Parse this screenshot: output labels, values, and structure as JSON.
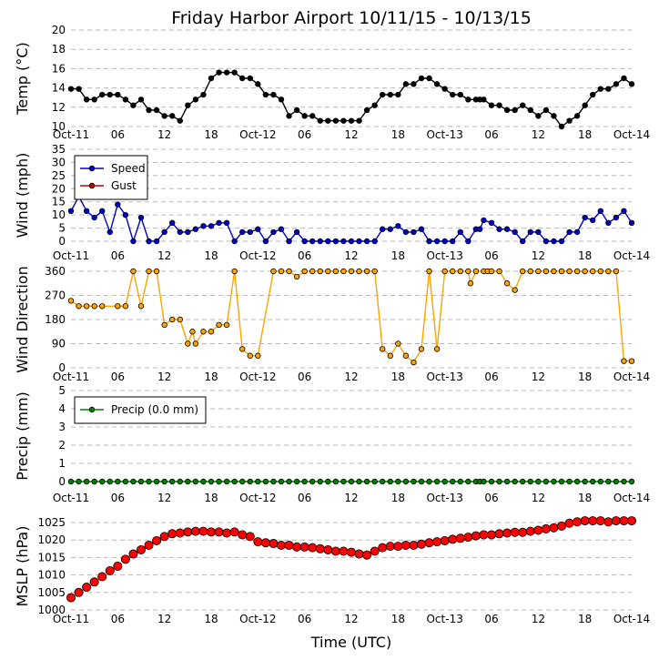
{
  "title": "Friday Harbor Airport 10/11/15 - 10/13/15",
  "xlabel": "Time (UTC)",
  "x_ticks": [
    "Oct-11",
    "06",
    "12",
    "18",
    "Oct-12",
    "06",
    "12",
    "18",
    "Oct-13",
    "06",
    "12",
    "18",
    "Oct-14"
  ],
  "chart_data": [
    {
      "type": "line",
      "ylabel": "Temp (°C)",
      "ylim": [
        10,
        20
      ],
      "y_ticks": [
        "10",
        "12",
        "14",
        "16",
        "18",
        "20"
      ],
      "grid": true,
      "x_unit": "hours since Oct-11 00:00 UTC",
      "series": [
        {
          "name": "",
          "color": "#000000",
          "x": [
            0,
            1,
            2,
            3,
            4,
            5,
            6,
            7,
            8,
            9,
            10,
            11,
            12,
            13,
            14,
            15,
            16,
            17,
            18,
            19,
            20,
            21,
            22,
            23,
            24,
            25,
            26,
            27,
            28,
            29,
            30,
            31,
            32,
            33,
            34,
            35,
            36,
            37,
            38,
            39,
            40,
            41,
            42,
            43,
            44,
            45,
            46,
            47,
            48,
            49,
            50,
            51,
            52,
            52.5,
            53,
            54,
            55,
            56,
            57,
            58,
            59,
            60,
            61,
            62,
            63,
            64,
            65,
            66,
            67,
            68,
            69,
            70,
            71,
            72
          ],
          "y": [
            13.9,
            13.9,
            12.8,
            12.8,
            13.3,
            13.3,
            13.3,
            12.8,
            12.2,
            12.8,
            11.7,
            11.7,
            11.1,
            11.1,
            10.6,
            12.2,
            12.8,
            13.3,
            15,
            15.6,
            15.6,
            15.6,
            15,
            15,
            14.4,
            13.3,
            13.3,
            12.8,
            11.1,
            11.7,
            11.1,
            11.1,
            10.6,
            10.6,
            10.6,
            10.6,
            10.6,
            10.6,
            11.7,
            12.2,
            13.3,
            13.3,
            13.3,
            14.4,
            14.4,
            15,
            15,
            14.4,
            13.9,
            13.3,
            13.3,
            12.8,
            12.8,
            12.8,
            12.8,
            12.2,
            12.2,
            11.7,
            11.7,
            12.2,
            11.7,
            11.1,
            11.7,
            11.1,
            10,
            10.6,
            11.1,
            12.2,
            13.3,
            13.9,
            13.9,
            14.4,
            15,
            14.4
          ]
        }
      ]
    },
    {
      "type": "line",
      "ylabel": "Wind (mph)",
      "ylim": [
        0,
        35
      ],
      "y_ticks": [
        "0",
        "5",
        "10",
        "15",
        "20",
        "25",
        "30",
        "35"
      ],
      "grid": true,
      "legend": "top-left",
      "series": [
        {
          "name": "Speed",
          "color": "#0000cc",
          "x": [
            0,
            1,
            2,
            3,
            4,
            5,
            6,
            7,
            8,
            9,
            10,
            11,
            12,
            13,
            14,
            15,
            16,
            17,
            18,
            19,
            20,
            21,
            22,
            23,
            24,
            25,
            26,
            27,
            28,
            29,
            30,
            31,
            32,
            33,
            34,
            35,
            36,
            37,
            38,
            39,
            40,
            41,
            42,
            43,
            44,
            45,
            46,
            47,
            48,
            49,
            50,
            51,
            52,
            52.5,
            53,
            54,
            55,
            56,
            57,
            58,
            59,
            60,
            61,
            62,
            63,
            64,
            65,
            66,
            67,
            68,
            69,
            70,
            71,
            72
          ],
          "y": [
            11.5,
            17,
            11.5,
            9,
            11.5,
            3.5,
            14,
            10,
            0,
            9,
            0,
            0,
            3.5,
            7,
            3.5,
            3.5,
            4.6,
            5.8,
            5.8,
            7,
            7,
            0,
            3.5,
            3.5,
            4.6,
            0,
            3.5,
            4.6,
            0,
            3.5,
            0,
            0,
            0,
            0,
            0,
            0,
            0,
            0,
            0,
            0,
            4.6,
            4.6,
            5.8,
            3.5,
            3.5,
            4.6,
            0,
            0,
            0,
            0,
            3.5,
            0,
            4.6,
            4.6,
            8,
            7,
            4.6,
            4.6,
            3.5,
            0,
            3.5,
            3.5,
            0,
            0,
            0,
            3.5,
            3.5,
            9,
            8,
            11.5,
            7,
            9,
            11.5,
            7
          ]
        },
        {
          "name": "Gust",
          "color": "#cc0000",
          "x": [],
          "y": []
        }
      ]
    },
    {
      "type": "scatter",
      "ylabel": "Wind Direction",
      "ylim": [
        0,
        360
      ],
      "y_ticks": [
        "0",
        "90",
        "180",
        "270",
        "360"
      ],
      "grid": true,
      "series": [
        {
          "name": "",
          "color": "#ffa500",
          "x": [
            0,
            1,
            2,
            3,
            4,
            6,
            7,
            8,
            9,
            10,
            11,
            12,
            13,
            14,
            15,
            15.6,
            16,
            17,
            18,
            19,
            20,
            21,
            22,
            23,
            24,
            26,
            27,
            28,
            29,
            30,
            31,
            32,
            33,
            34,
            35,
            36,
            37,
            38,
            39,
            40,
            41,
            42,
            43,
            44,
            45,
            46,
            47,
            48,
            49,
            50,
            51,
            51.3,
            52,
            53,
            53.5,
            54,
            55,
            56,
            57,
            58,
            59,
            60,
            61,
            62,
            63,
            64,
            65,
            66,
            67,
            68,
            69,
            70,
            71,
            72
          ],
          "y": [
            250,
            230,
            230,
            230,
            230,
            230,
            230,
            360,
            230,
            360,
            360,
            160,
            180,
            180,
            90,
            135,
            90,
            135,
            135,
            160,
            160,
            360,
            70,
            45,
            45,
            360,
            360,
            360,
            340,
            360,
            360,
            360,
            360,
            360,
            360,
            360,
            360,
            360,
            360,
            70,
            45,
            90,
            45,
            20,
            70,
            360,
            70,
            360,
            360,
            360,
            360,
            315,
            360,
            360,
            360,
            360,
            360,
            315,
            290,
            360,
            360,
            360,
            360,
            360,
            360,
            360,
            360,
            360,
            360,
            360,
            360,
            360,
            25,
            25
          ]
        }
      ]
    },
    {
      "type": "line",
      "ylabel": "Precip (mm)",
      "ylim": [
        0,
        5
      ],
      "y_ticks": [
        "0",
        "1",
        "2",
        "3",
        "4",
        "5"
      ],
      "grid": true,
      "legend": "top-left",
      "series": [
        {
          "name": "Precip (0.0 mm)",
          "color": "#008000",
          "x": [
            0,
            1,
            2,
            3,
            4,
            5,
            6,
            7,
            8,
            9,
            10,
            11,
            12,
            13,
            14,
            15,
            16,
            17,
            18,
            19,
            20,
            21,
            22,
            23,
            24,
            25,
            26,
            27,
            28,
            29,
            30,
            31,
            32,
            33,
            34,
            35,
            36,
            37,
            38,
            39,
            40,
            41,
            42,
            43,
            44,
            45,
            46,
            47,
            48,
            49,
            50,
            51,
            52,
            52.5,
            53,
            54,
            55,
            56,
            57,
            58,
            59,
            60,
            61,
            62,
            63,
            64,
            65,
            66,
            67,
            68,
            69,
            70,
            71,
            72
          ],
          "y": [
            0,
            0,
            0,
            0,
            0,
            0,
            0,
            0,
            0,
            0,
            0,
            0,
            0,
            0,
            0,
            0,
            0,
            0,
            0,
            0,
            0,
            0,
            0,
            0,
            0,
            0,
            0,
            0,
            0,
            0,
            0,
            0,
            0,
            0,
            0,
            0,
            0,
            0,
            0,
            0,
            0,
            0,
            0,
            0,
            0,
            0,
            0,
            0,
            0,
            0,
            0,
            0,
            0,
            0,
            0,
            0,
            0,
            0,
            0,
            0,
            0,
            0,
            0,
            0,
            0,
            0,
            0,
            0,
            0,
            0,
            0,
            0,
            0,
            0
          ]
        }
      ]
    },
    {
      "type": "scatter",
      "ylabel": "MSLP (hPa)",
      "ylim": [
        1000,
        1025
      ],
      "y_ticks": [
        "1000",
        "1005",
        "1010",
        "1015",
        "1020",
        "1025"
      ],
      "grid": true,
      "series": [
        {
          "name": "",
          "color": "#ff0000",
          "x": [
            0,
            1,
            2,
            3,
            4,
            5,
            6,
            7,
            8,
            9,
            10,
            11,
            12,
            13,
            14,
            15,
            16,
            17,
            18,
            19,
            20,
            21,
            22,
            23,
            24,
            25,
            26,
            27,
            28,
            29,
            30,
            31,
            32,
            33,
            34,
            35,
            36,
            37,
            38,
            39,
            40,
            41,
            42,
            43,
            44,
            45,
            46,
            47,
            48,
            49,
            50,
            51,
            52,
            53,
            54,
            55,
            56,
            57,
            58,
            59,
            60,
            61,
            62,
            63,
            64,
            65,
            66,
            67,
            68,
            69,
            70,
            71,
            72
          ],
          "y": [
            1003.5,
            1005,
            1006.5,
            1008,
            1009.5,
            1011.2,
            1012.5,
            1014.5,
            1016,
            1017.2,
            1018.5,
            1019.8,
            1021,
            1021.8,
            1022,
            1022.3,
            1022.5,
            1022.5,
            1022.3,
            1022.3,
            1022,
            1022.3,
            1021.5,
            1021,
            1019.5,
            1019.2,
            1019,
            1018.5,
            1018.5,
            1018,
            1018,
            1017.8,
            1017.5,
            1017.2,
            1016.8,
            1016.8,
            1016.5,
            1016,
            1015.7,
            1016.8,
            1017.8,
            1018.2,
            1018.2,
            1018.5,
            1018.5,
            1018.8,
            1019.2,
            1019.5,
            1019.8,
            1020.2,
            1020.5,
            1020.8,
            1021.2,
            1021.5,
            1021.5,
            1021.8,
            1022,
            1022.2,
            1022.2,
            1022.5,
            1022.8,
            1023.2,
            1023.5,
            1024,
            1024.8,
            1025.2,
            1025.5,
            1025.5,
            1025.5,
            1025.2,
            1025.5,
            1025.5,
            1025.5
          ]
        }
      ]
    }
  ]
}
